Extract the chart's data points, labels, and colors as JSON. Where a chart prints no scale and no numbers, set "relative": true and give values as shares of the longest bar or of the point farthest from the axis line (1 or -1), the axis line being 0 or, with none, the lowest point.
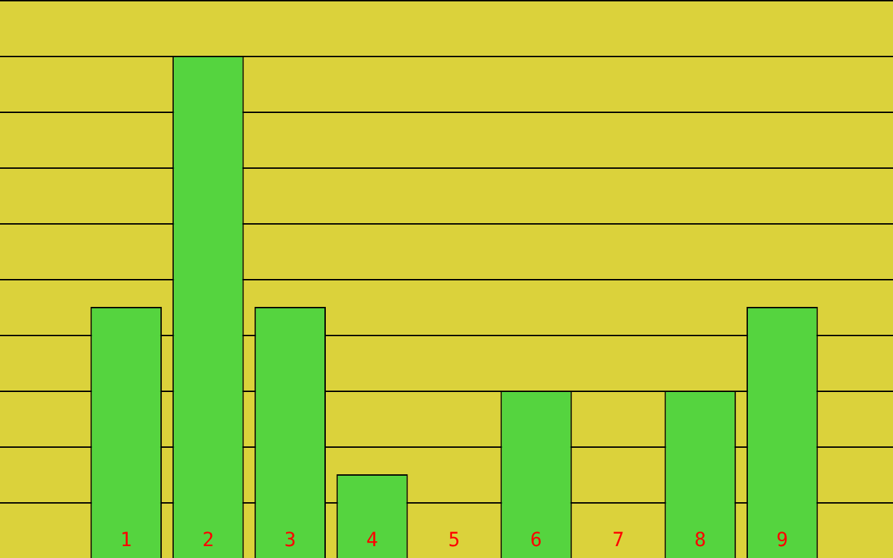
{
  "chart_data": {
    "type": "bar",
    "categories": [
      "1",
      "2",
      "3",
      "4",
      "5",
      "6",
      "7",
      "8",
      "9"
    ],
    "values": [
      0.5,
      1,
      0.5,
      0.1667,
      0,
      0.3333,
      0,
      0.3333,
      0.5
    ],
    "color": "#55d43f",
    "relative": true,
    "grid": "y"
  }
}
